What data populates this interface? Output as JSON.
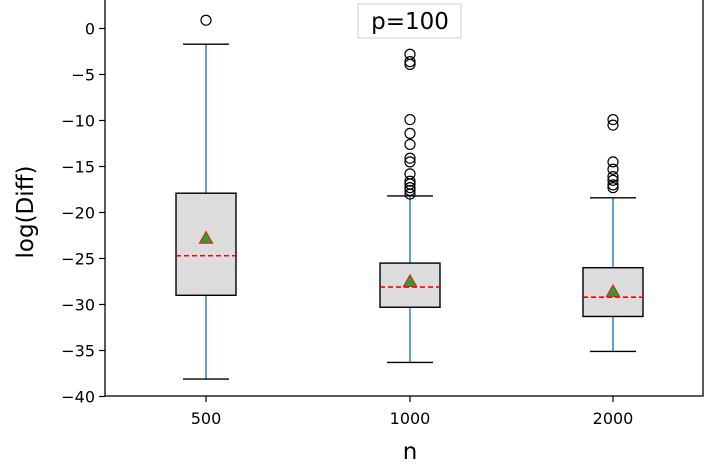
{
  "chart_data": {
    "type": "box",
    "title": "p=100",
    "xlabel": "n",
    "ylabel": "log(Diff)",
    "categories": [
      "500",
      "1000",
      "2000"
    ],
    "ylim": [
      -40,
      2.5
    ],
    "yticks": [
      0,
      -5,
      -10,
      -15,
      -20,
      -25,
      -30,
      -35,
      -40
    ],
    "ytick_labels": [
      "0",
      "−5",
      "−10",
      "−15",
      "−20",
      "−25",
      "−30",
      "−35",
      "−40"
    ],
    "grid": false,
    "colors": {
      "box_fill": "#dcdcdc",
      "box_edge": "#000000",
      "whisker": "#1f77b4",
      "cap": "#000000",
      "median": "#ff0000",
      "mean_marker_fill": "#2ca02c",
      "mean_marker_edge": "#d62728",
      "outlier_edge": "#000000"
    },
    "boxes": [
      {
        "label": "500",
        "whisker_low": -38.1,
        "q1": -29.0,
        "median": -24.7,
        "mean": -22.8,
        "q3": -17.9,
        "whisker_high": -1.7,
        "outliers": [
          0.9
        ]
      },
      {
        "label": "1000",
        "whisker_low": -36.3,
        "q1": -30.3,
        "median": -28.1,
        "mean": -27.5,
        "q3": -25.5,
        "whisker_high": -18.2,
        "outliers": [
          -2.8,
          -3.6,
          -3.9,
          -9.9,
          -11.4,
          -12.6,
          -14.1,
          -14.5,
          -15.8,
          -16.6,
          -16.9,
          -17.3,
          -17.6,
          -18.0
        ]
      },
      {
        "label": "2000",
        "whisker_low": -35.1,
        "q1": -31.3,
        "median": -29.2,
        "mean": -28.6,
        "q3": -26.0,
        "whisker_high": -18.4,
        "outliers": [
          -9.9,
          -10.5,
          -14.5,
          -15.3,
          -16.1,
          -16.5,
          -17.0,
          -17.3
        ]
      }
    ]
  }
}
